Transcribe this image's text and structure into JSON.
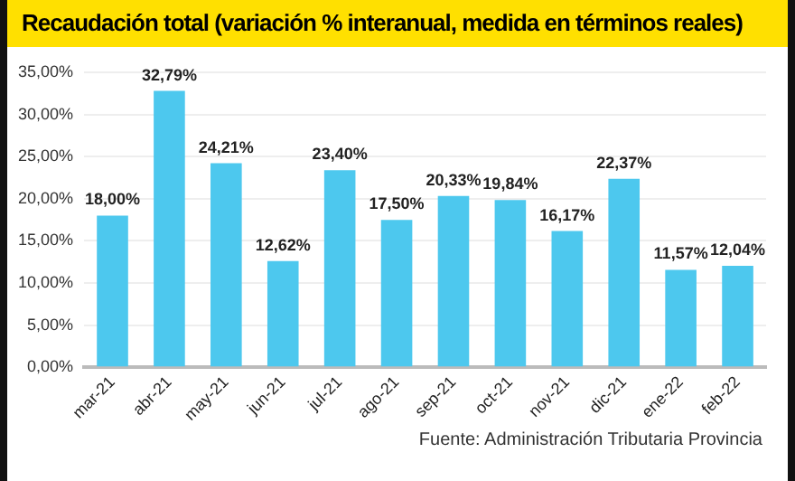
{
  "chart_data": {
    "type": "bar",
    "title": "Recaudación total (variación % interanual, medida en términos reales)",
    "categories": [
      "mar-21",
      "abr-21",
      "may-21",
      "jun-21",
      "jul-21",
      "ago-21",
      "sep-21",
      "oct-21",
      "nov-21",
      "dic-21",
      "ene-22",
      "feb-22"
    ],
    "values": [
      18.0,
      32.79,
      24.21,
      12.62,
      23.4,
      17.5,
      20.33,
      19.84,
      16.17,
      22.37,
      11.57,
      12.04
    ],
    "value_labels": [
      "18,00%",
      "32,79%",
      "24,21%",
      "12,62%",
      "23,40%",
      "17,50%",
      "20,33%",
      "19,84%",
      "16,17%",
      "22,37%",
      "11,57%",
      "12,04%"
    ],
    "color": "#4dc8ee",
    "ylim": [
      0,
      35
    ],
    "yticks": [
      {
        "value": 0,
        "label": "0,00%"
      },
      {
        "value": 5,
        "label": "5,00%"
      },
      {
        "value": 10,
        "label": "10,00%"
      },
      {
        "value": 15,
        "label": "15,00%"
      },
      {
        "value": 20,
        "label": "20,00%"
      },
      {
        "value": 25,
        "label": "25,00%"
      },
      {
        "value": 30,
        "label": "30,00%"
      },
      {
        "value": 35,
        "label": "35,00%"
      }
    ],
    "grid": "y",
    "annotations": [
      "Fuente: Administración Tributaria Provincia"
    ]
  }
}
